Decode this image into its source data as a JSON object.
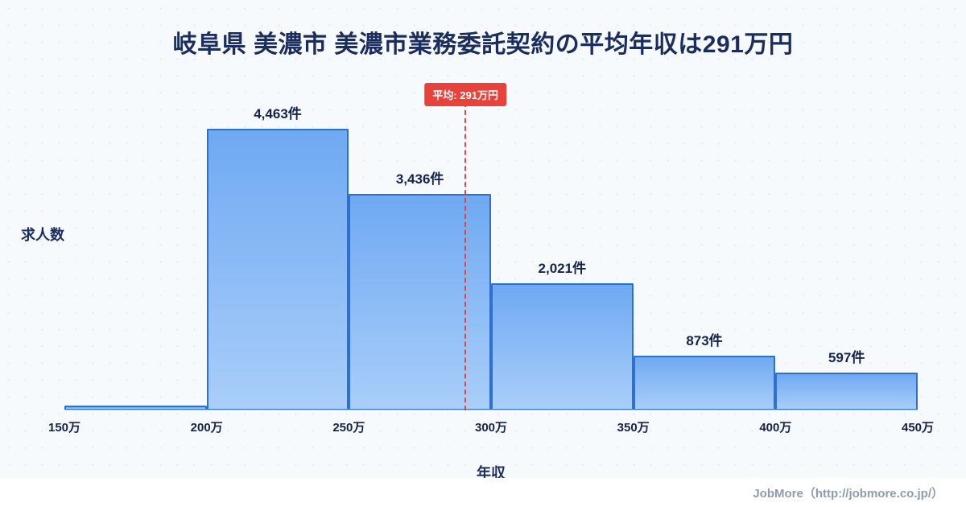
{
  "page": {
    "footer": "JobMore（http://jobmore.co.jp/）"
  },
  "chart_data": {
    "type": "bar",
    "subtype": "histogram",
    "title": "岐阜県 美濃市 美濃市業務委託契約の平均年収は291万円",
    "ylabel": "求人数",
    "xlabel": "年収",
    "x_ticks": [
      "150万",
      "200万",
      "250万",
      "300万",
      "350万",
      "400万",
      "450万"
    ],
    "x_range": [
      150,
      450
    ],
    "bin_width": 50,
    "values": [
      80,
      4463,
      3436,
      2021,
      873,
      597
    ],
    "bar_labels": [
      "",
      "4,463件",
      "3,436件",
      "2,021件",
      "873件",
      "597件"
    ],
    "ymax": 4463,
    "average": {
      "value": 291,
      "label": "平均: 291万円"
    },
    "legend": "none",
    "grid": "dotted-background",
    "colors": {
      "bar_top": "#6fa9f2",
      "bar_bottom": "#a9cef9",
      "bar_border": "#2e6fd2",
      "average_line": "#e8423c",
      "title_text": "#1b2c5e"
    }
  }
}
